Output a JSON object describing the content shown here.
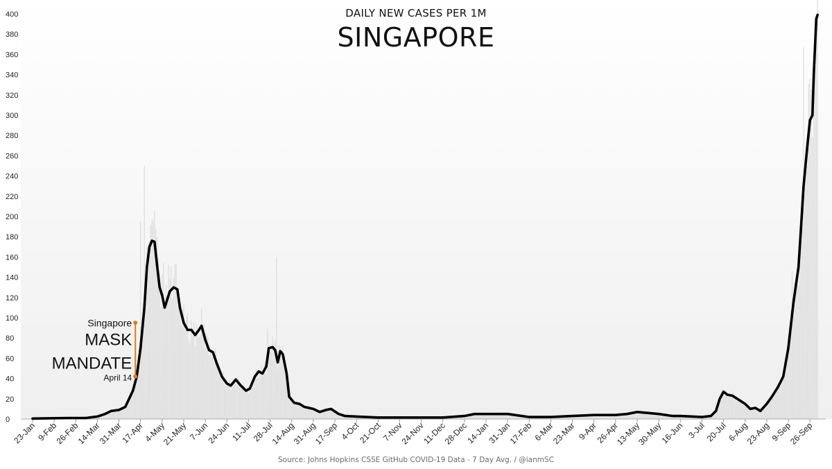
{
  "chart_data": {
    "type": "line",
    "title": "SINGAPORE",
    "subtitle": "DAILY NEW CASES PER 1M",
    "source": "Source: Johns Hopkins CSSE GitHub  COVID-19 Data - 7 Day Avg. / @ianmSC",
    "ylim": [
      0,
      400
    ],
    "y_ticks": [
      0,
      20,
      40,
      60,
      80,
      100,
      120,
      140,
      160,
      180,
      200,
      220,
      240,
      260,
      280,
      300,
      320,
      340,
      360,
      380,
      400
    ],
    "x_range": [
      "2020-01-23",
      "2021-10-03"
    ],
    "x_ticks": [
      "23-Jan",
      "9-Feb",
      "26-Feb",
      "14-Mar",
      "31-Mar",
      "17-Apr",
      "4-May",
      "21-May",
      "7-Jun",
      "24-Jun",
      "11-Jul",
      "28-Jul",
      "14-Aug",
      "31-Aug",
      "17-Sep",
      "4-Oct",
      "21-Oct",
      "7-Nov",
      "24-Nov",
      "11-Dec",
      "28-Dec",
      "14-Jan",
      "31-Jan",
      "17-Feb",
      "6-Mar",
      "23-Mar",
      "9-Apr",
      "26-Apr",
      "13-May",
      "30-May",
      "16-Jun",
      "3-Jul",
      "20-Jul",
      "6-Aug",
      "23-Aug",
      "9-Sep",
      "26-Sep"
    ],
    "grid": false,
    "series": [
      {
        "type": "line",
        "color": "#000000",
        "points": [
          [
            "2020-01-23",
            0.5
          ],
          [
            "2020-02-09",
            0.8
          ],
          [
            "2020-02-20",
            1
          ],
          [
            "2020-03-05",
            1
          ],
          [
            "2020-03-14",
            2.5
          ],
          [
            "2020-03-20",
            5
          ],
          [
            "2020-03-25",
            8
          ],
          [
            "2020-03-31",
            9
          ],
          [
            "2020-04-05",
            12
          ],
          [
            "2020-04-08",
            20
          ],
          [
            "2020-04-11",
            28
          ],
          [
            "2020-04-14",
            42
          ],
          [
            "2020-04-17",
            70
          ],
          [
            "2020-04-20",
            110
          ],
          [
            "2020-04-22",
            150
          ],
          [
            "2020-04-24",
            170
          ],
          [
            "2020-04-26",
            176
          ],
          [
            "2020-04-28",
            175
          ],
          [
            "2020-04-30",
            152
          ],
          [
            "2020-05-02",
            130
          ],
          [
            "2020-05-04",
            122
          ],
          [
            "2020-05-06",
            110
          ],
          [
            "2020-05-08",
            118
          ],
          [
            "2020-05-10",
            126
          ],
          [
            "2020-05-13",
            130
          ],
          [
            "2020-05-16",
            128
          ],
          [
            "2020-05-18",
            110
          ],
          [
            "2020-05-21",
            95
          ],
          [
            "2020-05-24",
            88
          ],
          [
            "2020-05-27",
            88
          ],
          [
            "2020-05-30",
            83
          ],
          [
            "2020-06-02",
            88
          ],
          [
            "2020-06-04",
            92
          ],
          [
            "2020-06-07",
            78
          ],
          [
            "2020-06-10",
            68
          ],
          [
            "2020-06-13",
            66
          ],
          [
            "2020-06-16",
            55
          ],
          [
            "2020-06-20",
            42
          ],
          [
            "2020-06-24",
            35
          ],
          [
            "2020-06-27",
            33
          ],
          [
            "2020-07-01",
            39
          ],
          [
            "2020-07-05",
            33
          ],
          [
            "2020-07-09",
            28
          ],
          [
            "2020-07-12",
            30
          ],
          [
            "2020-07-16",
            42
          ],
          [
            "2020-07-19",
            47
          ],
          [
            "2020-07-22",
            45
          ],
          [
            "2020-07-25",
            52
          ],
          [
            "2020-07-27",
            70
          ],
          [
            "2020-07-30",
            71
          ],
          [
            "2020-08-01",
            68
          ],
          [
            "2020-08-03",
            56
          ],
          [
            "2020-08-05",
            67
          ],
          [
            "2020-08-07",
            64
          ],
          [
            "2020-08-10",
            45
          ],
          [
            "2020-08-12",
            22
          ],
          [
            "2020-08-16",
            16
          ],
          [
            "2020-08-20",
            15
          ],
          [
            "2020-08-24",
            12
          ],
          [
            "2020-08-31",
            10
          ],
          [
            "2020-09-05",
            7
          ],
          [
            "2020-09-10",
            9
          ],
          [
            "2020-09-14",
            10
          ],
          [
            "2020-09-20",
            5
          ],
          [
            "2020-09-25",
            3
          ],
          [
            "2020-10-04",
            2.5
          ],
          [
            "2020-10-21",
            1.5
          ],
          [
            "2020-11-07",
            1.5
          ],
          [
            "2020-11-24",
            1.5
          ],
          [
            "2020-12-11",
            1.5
          ],
          [
            "2020-12-28",
            3
          ],
          [
            "2021-01-05",
            5
          ],
          [
            "2021-01-14",
            5
          ],
          [
            "2021-01-31",
            5
          ],
          [
            "2021-02-17",
            2
          ],
          [
            "2021-03-06",
            2
          ],
          [
            "2021-03-23",
            3
          ],
          [
            "2021-04-09",
            4
          ],
          [
            "2021-04-26",
            4
          ],
          [
            "2021-05-05",
            5
          ],
          [
            "2021-05-13",
            7
          ],
          [
            "2021-05-30",
            5
          ],
          [
            "2021-06-10",
            3
          ],
          [
            "2021-06-16",
            3
          ],
          [
            "2021-07-03",
            2
          ],
          [
            "2021-07-10",
            3
          ],
          [
            "2021-07-14",
            8
          ],
          [
            "2021-07-17",
            20
          ],
          [
            "2021-07-20",
            27
          ],
          [
            "2021-07-23",
            24
          ],
          [
            "2021-07-27",
            23
          ],
          [
            "2021-08-06",
            15
          ],
          [
            "2021-08-10",
            10
          ],
          [
            "2021-08-14",
            11
          ],
          [
            "2021-08-18",
            8
          ],
          [
            "2021-08-23",
            15
          ],
          [
            "2021-08-27",
            22
          ],
          [
            "2021-09-01",
            32
          ],
          [
            "2021-09-05",
            42
          ],
          [
            "2021-09-09",
            70
          ],
          [
            "2021-09-13",
            115
          ],
          [
            "2021-09-17",
            150
          ],
          [
            "2021-09-19",
            190
          ],
          [
            "2021-09-21",
            230
          ],
          [
            "2021-09-24",
            270
          ],
          [
            "2021-09-26",
            295
          ],
          [
            "2021-09-28",
            300
          ],
          [
            "2021-09-29",
            340
          ],
          [
            "2021-10-01",
            395
          ],
          [
            "2021-10-02",
            399
          ]
        ]
      },
      {
        "type": "bar",
        "color": "#dcdcdc",
        "spikes": [
          [
            "2020-04-17",
            195
          ],
          [
            "2020-04-20",
            250
          ],
          [
            "2020-04-23",
            142
          ],
          [
            "2020-05-01",
            160
          ],
          [
            "2020-05-05",
            154
          ],
          [
            "2020-05-09",
            152
          ],
          [
            "2020-05-20",
            108
          ],
          [
            "2020-06-15",
            70
          ],
          [
            "2020-07-26",
            89
          ],
          [
            "2020-08-02",
            160
          ],
          [
            "2021-09-06",
            50
          ],
          [
            "2021-09-12",
            146
          ],
          [
            "2021-09-21",
            367
          ]
        ]
      }
    ],
    "annotation": {
      "date": "2020-04-14",
      "line_top": 95,
      "line_bottom": 42,
      "color": "#e07b1a",
      "text_country": "Singapore",
      "text_line1": "MASK",
      "text_line2": "MANDATE",
      "text_date": "April 14"
    }
  }
}
